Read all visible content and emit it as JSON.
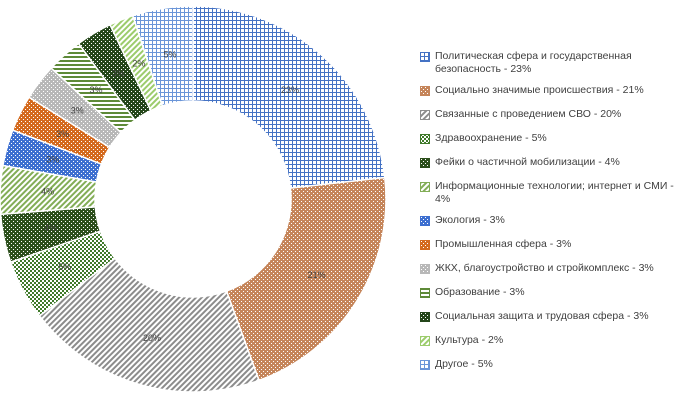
{
  "chart_data": {
    "type": "pie",
    "donut": true,
    "legend_position": "right",
    "labels": [
      "Политическая сфера и государственная безопасность - 23%",
      "Социально значимые происшествия - 21%",
      "Связанные с проведением СВО - 20%",
      "Здравоохранение - 5%",
      "Фейки о частичной мобилизации - 4%",
      "Информационные технологии; интернет и СМИ - 4%",
      "Экология - 3%",
      "Промышленная сфера - 3%",
      "ЖКХ, благоустройство и стройкомплекс - 3%",
      "Образование - 3%",
      "Социальная защита и трудовая сфера - 3%",
      "Культура - 2%",
      "Другое - 5%"
    ],
    "values": [
      23,
      21,
      20,
      5,
      4,
      4,
      3,
      3,
      3,
      3,
      3,
      2,
      5
    ],
    "data_labels": [
      "23%",
      "21%",
      "20%",
      "5%",
      "4%",
      "4%",
      "3%",
      "3%",
      "3%",
      "3%",
      "3%",
      "2%",
      "5%"
    ],
    "colors": [
      "#4472c4",
      "#c5855a",
      "#8c8c8c",
      "#3f7a2a",
      "#2c4f1c",
      "#82ad56",
      "#3d6fd0",
      "#d46a1e",
      "#b8b8b8",
      "#5e8a38",
      "#24461a",
      "#9ccc6c",
      "#6a95d8"
    ],
    "patterns": [
      "grid",
      "dots",
      "diag",
      "checker",
      "dots",
      "diag",
      "dots",
      "dots",
      "dots",
      "hlines",
      "dots",
      "diag",
      "grid"
    ]
  }
}
